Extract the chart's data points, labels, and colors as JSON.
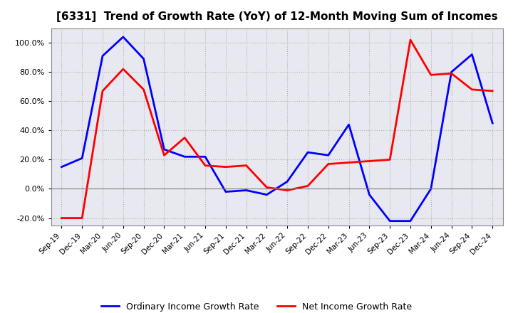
{
  "title": "[6331]  Trend of Growth Rate (YoY) of 12-Month Moving Sum of Incomes",
  "x_labels": [
    "Sep-19",
    "Dec-19",
    "Mar-20",
    "Jun-20",
    "Sep-20",
    "Dec-20",
    "Mar-21",
    "Jun-21",
    "Sep-21",
    "Dec-21",
    "Mar-22",
    "Jun-22",
    "Sep-22",
    "Dec-22",
    "Mar-23",
    "Jun-23",
    "Sep-23",
    "Dec-23",
    "Mar-24",
    "Jun-24",
    "Sep-24",
    "Dec-24"
  ],
  "ordinary_income": [
    0.15,
    0.21,
    0.91,
    1.04,
    0.89,
    0.27,
    0.22,
    0.22,
    -0.02,
    -0.01,
    -0.04,
    0.05,
    0.25,
    0.23,
    0.44,
    -0.04,
    -0.22,
    -0.22,
    0.0,
    0.8,
    0.92,
    0.45
  ],
  "net_income": [
    -0.2,
    -0.2,
    0.67,
    0.82,
    0.68,
    0.23,
    0.35,
    0.16,
    0.15,
    0.16,
    0.01,
    -0.01,
    0.02,
    0.17,
    0.18,
    0.19,
    0.2,
    1.02,
    0.78,
    0.79,
    0.68,
    0.67
  ],
  "ylim": [
    -0.25,
    1.1
  ],
  "yticks": [
    -0.2,
    0.0,
    0.2,
    0.4,
    0.6,
    0.8,
    1.0
  ],
  "ordinary_color": "#0000FF",
  "net_color": "#FF0000",
  "background_color": "#FFFFFF",
  "plot_bg_color": "#E8E8F0",
  "grid_color": "#AAAAAA",
  "legend_ordinary": "Ordinary Income Growth Rate",
  "legend_net": "Net Income Growth Rate",
  "title_fontsize": 11
}
